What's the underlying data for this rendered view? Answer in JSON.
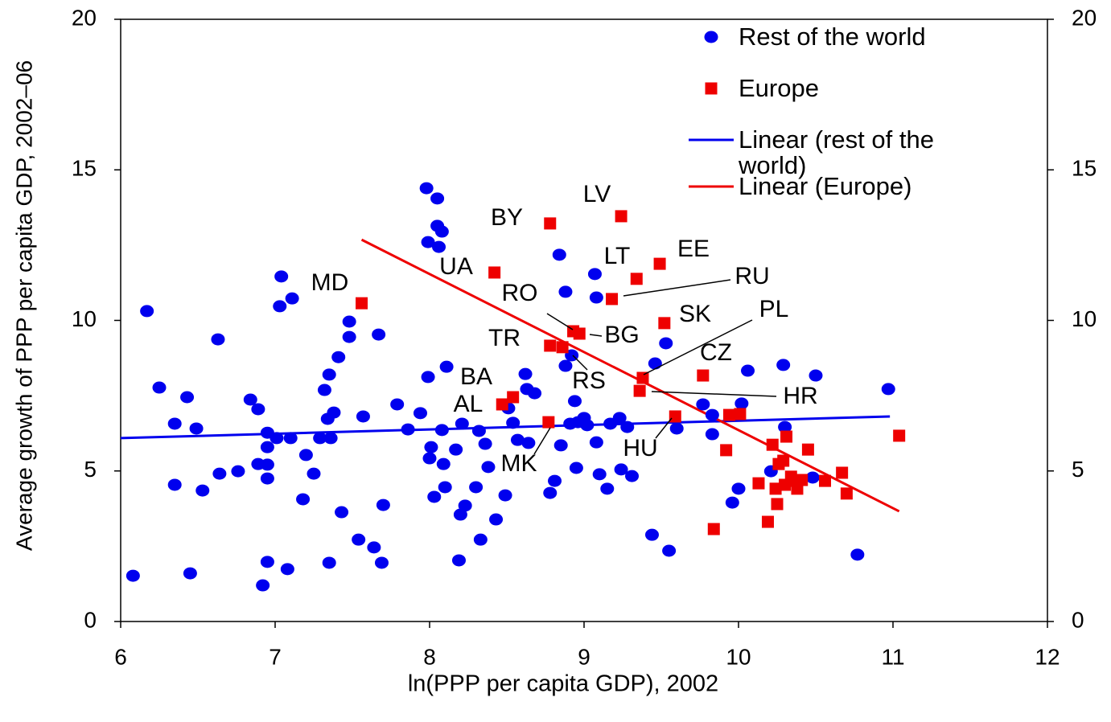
{
  "chart_data": {
    "type": "scatter",
    "xlabel": "ln(PPP per capita GDP), 2002",
    "ylabel": "Average growth of PPP per capita GDP, 2002–06",
    "xlim": [
      6,
      12
    ],
    "xticks": [
      6,
      7,
      8,
      9,
      10,
      11,
      12
    ],
    "ylim": [
      0,
      20
    ],
    "yticks": [
      0,
      5,
      10,
      15,
      20
    ],
    "y2lim": [
      0,
      20
    ],
    "y2ticks": [
      0,
      5,
      10,
      15,
      20
    ],
    "legend": "top-right",
    "series": [
      {
        "name": "Rest of the world",
        "color": "#0000ee",
        "marker": "circle",
        "x": [
          6.17,
          6.08,
          6.25,
          6.35,
          6.35,
          6.43,
          6.45,
          6.49,
          6.53,
          6.63,
          6.64,
          6.76,
          6.84,
          6.89,
          6.89,
          6.92,
          6.95,
          6.95,
          6.95,
          6.95,
          6.95,
          7.01,
          7.04,
          7.03,
          7.08,
          7.1,
          7.11,
          7.18,
          7.2,
          7.25,
          7.29,
          7.32,
          7.35,
          7.34,
          7.36,
          7.35,
          7.38,
          7.41,
          7.43,
          7.48,
          7.48,
          7.54,
          7.57,
          7.64,
          7.67,
          7.69,
          7.7,
          7.79,
          7.86,
          7.94,
          7.98,
          7.99,
          7.99,
          8.0,
          8.01,
          8.03,
          8.05,
          8.05,
          8.06,
          8.08,
          8.08,
          8.09,
          8.1,
          8.11,
          8.17,
          8.2,
          8.19,
          8.21,
          8.23,
          8.3,
          8.32,
          8.33,
          8.36,
          8.38,
          8.43,
          8.49,
          8.51,
          8.54,
          8.57,
          8.62,
          8.63,
          8.64,
          8.68,
          8.78,
          8.81,
          8.84,
          8.85,
          8.88,
          8.88,
          8.91,
          8.92,
          8.94,
          8.95,
          8.96,
          9.0,
          9.02,
          9.07,
          9.08,
          9.08,
          9.1,
          9.15,
          9.17,
          9.23,
          9.24,
          9.28,
          9.31,
          9.44,
          9.46,
          9.53,
          9.55,
          9.6,
          9.77,
          9.83,
          9.83,
          9.96,
          10.0,
          10.02,
          10.06,
          10.21,
          10.29,
          10.3,
          10.5,
          10.48,
          10.77,
          10.97
        ],
        "values": [
          10.31,
          1.52,
          7.77,
          6.57,
          4.54,
          7.45,
          1.6,
          6.41,
          4.35,
          9.37,
          4.91,
          4.99,
          7.37,
          7.05,
          5.23,
          1.2,
          5.21,
          5.79,
          6.27,
          4.75,
          1.98,
          6.09,
          11.46,
          10.47,
          1.74,
          6.09,
          10.73,
          4.06,
          5.53,
          4.91,
          6.09,
          7.69,
          8.2,
          6.73,
          6.09,
          1.95,
          6.94,
          8.78,
          3.63,
          9.96,
          9.45,
          2.72,
          6.81,
          2.46,
          9.53,
          1.95,
          3.87,
          7.21,
          6.38,
          6.92,
          14.39,
          12.6,
          8.12,
          5.42,
          5.79,
          4.14,
          14.05,
          13.14,
          12.44,
          12.95,
          6.36,
          5.23,
          4.46,
          8.46,
          5.71,
          3.55,
          2.03,
          6.57,
          3.85,
          4.46,
          6.33,
          2.72,
          5.9,
          5.13,
          3.39,
          4.19,
          7.08,
          6.6,
          6.03,
          8.22,
          7.72,
          5.93,
          7.58,
          4.27,
          4.67,
          12.18,
          5.85,
          10.95,
          8.49,
          6.57,
          8.84,
          7.32,
          5.1,
          6.62,
          6.76,
          6.52,
          11.54,
          5.95,
          10.76,
          4.89,
          4.41,
          6.57,
          6.76,
          5.05,
          6.46,
          4.83,
          2.88,
          8.57,
          9.24,
          2.35,
          6.41,
          7.21,
          6.86,
          6.22,
          3.95,
          4.41,
          7.24,
          8.33,
          4.99,
          8.52,
          6.46,
          8.17,
          4.78,
          2.22,
          7.72
        ]
      },
      {
        "name": "Europe",
        "color": "#ee0000",
        "marker": "square",
        "x": [
          8.78,
          9.24,
          8.42,
          9.34,
          9.49,
          7.56,
          9.18,
          8.93,
          8.97,
          9.52,
          8.78,
          8.86,
          9.38,
          9.77,
          9.36,
          8.54,
          8.47,
          8.77,
          9.59,
          9.94,
          10.01,
          9.92,
          10.22,
          10.31,
          10.26,
          10.29,
          10.45,
          10.13,
          10.24,
          10.25,
          10.3,
          10.34,
          10.38,
          10.41,
          10.37,
          10.56,
          10.67,
          10.7,
          10.19,
          9.84,
          11.04
        ],
        "values": [
          13.22,
          13.46,
          11.59,
          11.38,
          11.88,
          10.57,
          10.71,
          9.64,
          9.56,
          9.91,
          9.16,
          9.11,
          8.09,
          8.17,
          7.66,
          7.45,
          7.21,
          6.62,
          6.81,
          6.86,
          6.89,
          5.69,
          5.87,
          6.14,
          5.23,
          5.34,
          5.71,
          4.59,
          4.41,
          3.9,
          4.54,
          4.81,
          4.41,
          4.7,
          4.67,
          4.67,
          4.94,
          4.25,
          3.31,
          3.07,
          6.17
        ]
      },
      {
        "name": "Linear (rest of the world)",
        "color": "#0000ee",
        "marker": "line",
        "x": [
          6.0,
          10.98
        ],
        "values": [
          6.09,
          6.81
        ]
      },
      {
        "name": "Linear (Europe)",
        "color": "#ee0000",
        "marker": "line",
        "x": [
          7.56,
          11.04
        ],
        "values": [
          12.68,
          3.66
        ]
      }
    ],
    "annotations": [
      "BY",
      "LV",
      "UA",
      "LT",
      "EE",
      "MD",
      "RU",
      "RO",
      "BG",
      "SK",
      "TR",
      "PL",
      "CZ",
      "HR",
      "BA",
      "AL",
      "RS",
      "MK",
      "HU"
    ]
  }
}
